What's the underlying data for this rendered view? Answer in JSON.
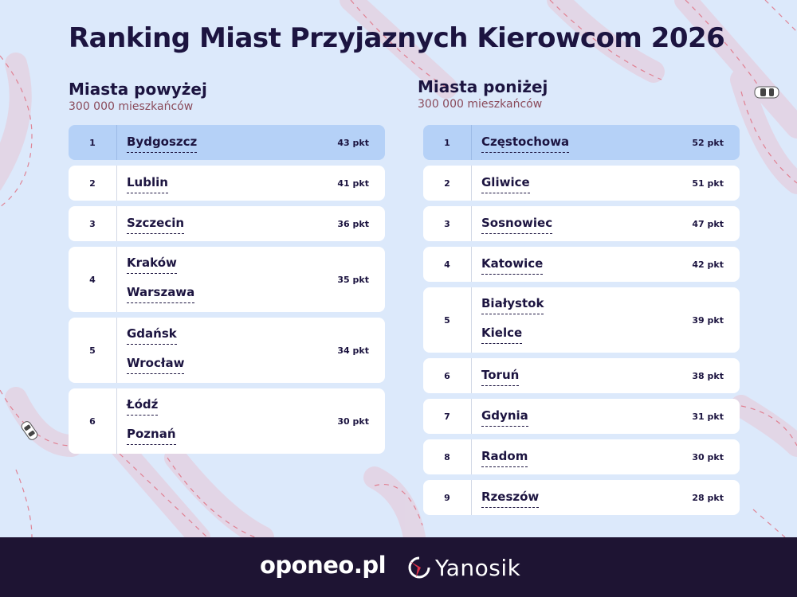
{
  "title": "Ranking Miast Przyjaznych Kierowcom 2026",
  "colors": {
    "background": "#dce9fb",
    "highlight": "#b5d1f7",
    "text": "#1c1440",
    "footer": "#1e1433",
    "road": "#e06b7d"
  },
  "left": {
    "heading": "Miasta powyżej",
    "subheading": "300 000 mieszkańców",
    "rows": [
      {
        "rank": "1",
        "cities": [
          "Bydgoszcz"
        ],
        "points": "43 pkt"
      },
      {
        "rank": "2",
        "cities": [
          "Lublin"
        ],
        "points": "41 pkt"
      },
      {
        "rank": "3",
        "cities": [
          "Szczecin"
        ],
        "points": "36 pkt"
      },
      {
        "rank": "4",
        "cities": [
          "Kraków",
          "Warszawa"
        ],
        "points": "35 pkt"
      },
      {
        "rank": "5",
        "cities": [
          "Gdańsk",
          "Wrocław"
        ],
        "points": "34 pkt"
      },
      {
        "rank": "6",
        "cities": [
          "Łódź",
          "Poznań"
        ],
        "points": "30 pkt"
      }
    ]
  },
  "right": {
    "heading": "Miasta poniżej",
    "subheading": "300 000 mieszkańców",
    "rows": [
      {
        "rank": "1",
        "cities": [
          "Częstochowa"
        ],
        "points": "52 pkt"
      },
      {
        "rank": "2",
        "cities": [
          "Gliwice"
        ],
        "points": "51 pkt"
      },
      {
        "rank": "3",
        "cities": [
          "Sosnowiec"
        ],
        "points": "47 pkt"
      },
      {
        "rank": "4",
        "cities": [
          "Katowice"
        ],
        "points": "42 pkt"
      },
      {
        "rank": "5",
        "cities": [
          "Białystok",
          "Kielce"
        ],
        "points": "39 pkt"
      },
      {
        "rank": "6",
        "cities": [
          "Toruń"
        ],
        "points": "38 pkt"
      },
      {
        "rank": "7",
        "cities": [
          "Gdynia"
        ],
        "points": "31 pkt"
      },
      {
        "rank": "8",
        "cities": [
          "Radom"
        ],
        "points": "30 pkt"
      },
      {
        "rank": "9",
        "cities": [
          "Rzeszów"
        ],
        "points": "28 pkt"
      }
    ]
  },
  "footer": {
    "logo1": "oponeo.pl",
    "logo2": "Yanosik"
  }
}
